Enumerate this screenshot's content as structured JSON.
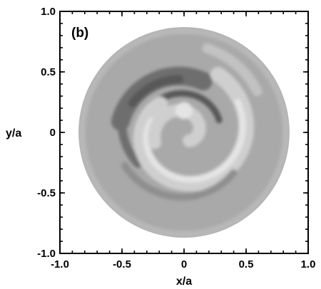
{
  "chart_data": {
    "type": "heatmap",
    "panel_label": "(b)",
    "xlabel": "x/a",
    "ylabel": "y/a",
    "xlim": [
      -1.0,
      1.0
    ],
    "ylim": [
      -1.0,
      1.0
    ],
    "x_ticks": [
      -1.0,
      -0.5,
      0,
      0.5,
      1.0
    ],
    "y_ticks": [
      -1.0,
      -0.5,
      0,
      0.5,
      1.0
    ],
    "x_tick_labels": [
      "-1.0",
      "-0.5",
      "0",
      "0.5",
      "1.0"
    ],
    "y_tick_labels": [
      "-1.0",
      "-0.5",
      "0",
      "0.5",
      "1.0"
    ],
    "domain_radius": 0.85,
    "grid": false,
    "legend": "none",
    "colormap": "grayscale",
    "colors": {
      "background_field": "#a9a9a9",
      "dark_band": "#6e6e6e",
      "darkest": "#585858",
      "light_band": "#cfcfcf",
      "lightest": "#e4e4e4"
    }
  }
}
